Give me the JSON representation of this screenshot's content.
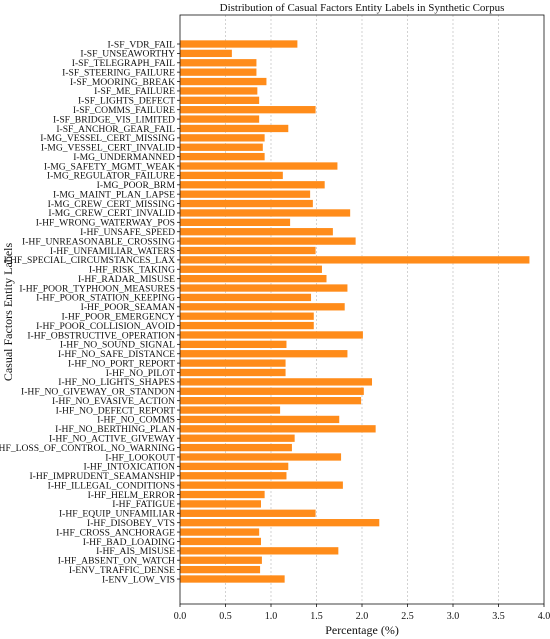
{
  "chart_data": {
    "type": "bar",
    "orientation": "horizontal",
    "title": "Distribution of Casual Factors Entity Labels in Synthetic Corpus",
    "xlabel": "Percentage (%)",
    "ylabel": "Casual Factors Entity Labels",
    "xlim": [
      0,
      4.0
    ],
    "xticks": [
      "0.0",
      "0.5",
      "1.0",
      "1.5",
      "2.0",
      "2.5",
      "3.0",
      "3.5",
      "4.0"
    ],
    "grid": "x",
    "bar_color": "#ff8c1a",
    "categories": [
      "I-SF_VDR_FAIL",
      "I-SF_UNSEAWORTHY",
      "I-SF_TELEGRAPH_FAIL",
      "I-SF_STEERING_FAILURE",
      "I-SF_MOORING_BREAK",
      "I-SF_ME_FAILURE",
      "I-SF_LIGHTS_DEFECT",
      "I-SF_COMMS_FAILURE",
      "I-SF_BRIDGE_VIS_LIMITED",
      "I-SF_ANCHOR_GEAR_FAIL",
      "I-MG_VESSEL_CERT_MISSING",
      "I-MG_VESSEL_CERT_INVALID",
      "I-MG_UNDERMANNED",
      "I-MG_SAFETY_MGMT_WEAK",
      "I-MG_REGULATOR_FAILURE",
      "I-MG_POOR_BRM",
      "I-MG_MAINT_PLAN_LAPSE",
      "I-MG_CREW_CERT_MISSING",
      "I-MG_CREW_CERT_INVALID",
      "I-HF_WRONG_WATERWAY_POS",
      "I-HF_UNSAFE_SPEED",
      "I-HF_UNREASONABLE_CROSSING",
      "I-HF_UNFAMILIAR_WATERS",
      "I-HF_SPECIAL_CIRCUMSTANCES_LAX",
      "I-HF_RISK_TAKING",
      "I-HF_RADAR_MISUSE",
      "I-HF_POOR_TYPHOON_MEASURES",
      "I-HF_POOR_STATION_KEEPING",
      "I-HF_POOR_SEAMAN",
      "I-HF_POOR_EMERGENCY",
      "I-HF_POOR_COLLISION_AVOID",
      "I-HF_OBSTRUCTIVE_OPERATION",
      "I-HF_NO_SOUND_SIGNAL",
      "I-HF_NO_SAFE_DISTANCE",
      "I-HF_NO_PORT_REPORT",
      "I-HF_NO_PILOT",
      "I-HF_NO_LIGHTS_SHAPES",
      "I-HF_NO_GIVEWAY_OR_STANDON",
      "I-HF_NO_EVASIVE_ACTION",
      "I-HF_NO_DEFECT_REPORT",
      "I-HF_NO_COMMS",
      "I-HF_NO_BERTHING_PLAN",
      "I-HF_NO_ACTIVE_GIVEWAY",
      "I-HF_LOSS_OF_CONTROL_NO_WARNING",
      "I-HF_LOOKOUT",
      "I-HF_INTOXICATION",
      "I-HF_IMPRUDENT_SEAMANSHIP",
      "I-HF_ILLEGAL_CONDITIONS",
      "I-HF_HELM_ERROR",
      "I-HF_FATIGUE",
      "I-HF_EQUIP_UNFAMILIAR",
      "I-HF_DISOBEY_VTS",
      "I-HF_CROSS_ANCHORAGE",
      "I-HF_BAD_LOADING",
      "I-HF_AIS_MISUSE",
      "I-HF_ABSENT_ON_WATCH",
      "I-ENV_TRAFFIC_DENSE",
      "I-ENV_LOW_VIS"
    ],
    "values": [
      1.29,
      0.57,
      0.84,
      0.84,
      0.95,
      0.85,
      0.87,
      1.49,
      0.87,
      1.19,
      0.93,
      0.91,
      0.93,
      1.73,
      1.13,
      1.59,
      1.43,
      1.46,
      1.87,
      1.21,
      1.68,
      1.93,
      1.49,
      3.84,
      1.56,
      1.61,
      1.84,
      1.44,
      1.81,
      1.47,
      1.47,
      2.01,
      1.17,
      1.84,
      1.16,
      1.16,
      2.11,
      2.02,
      1.99,
      1.1,
      1.75,
      2.15,
      1.26,
      1.23,
      1.77,
      1.19,
      1.17,
      1.79,
      0.93,
      0.89,
      1.49,
      2.19,
      0.87,
      0.89,
      1.74,
      0.9,
      0.88,
      1.15
    ]
  }
}
